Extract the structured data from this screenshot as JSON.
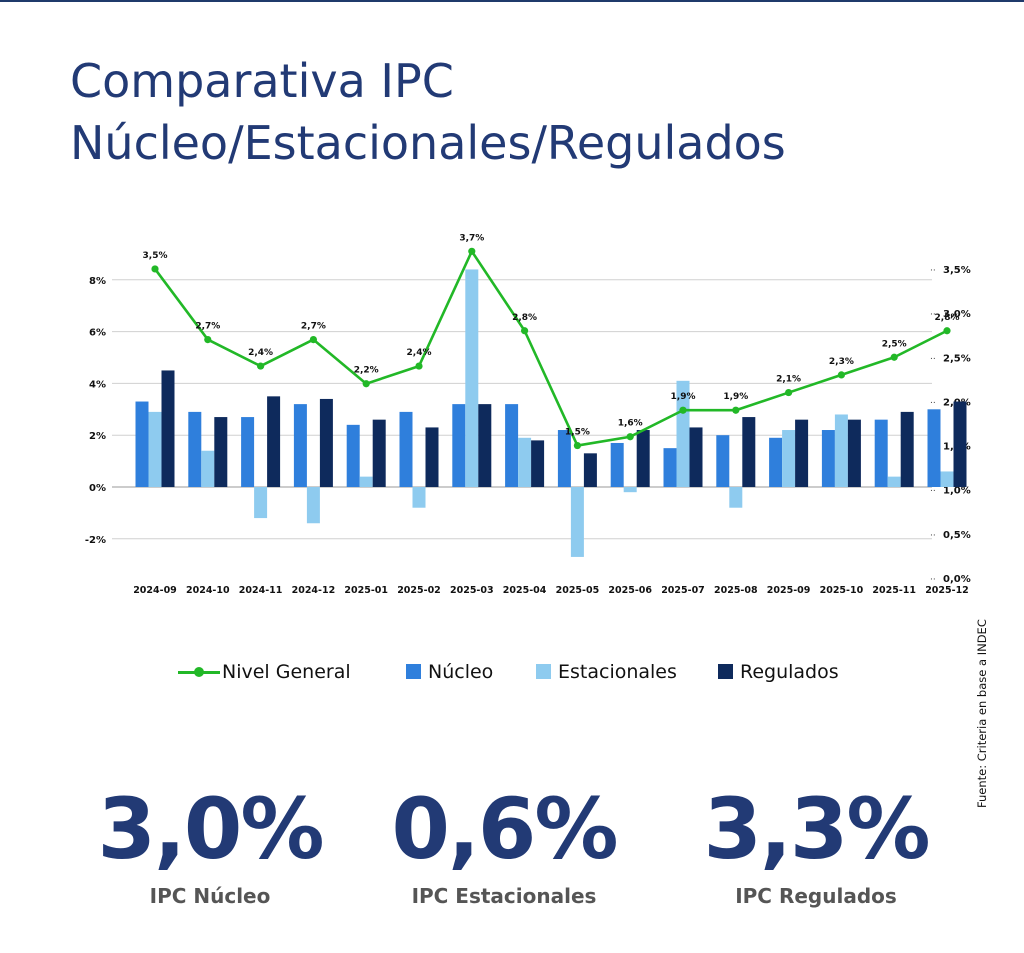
{
  "page": {
    "title_line1": "Comparativa IPC",
    "title_line2": "Núcleo/Estacionales/Regulados",
    "source": "Fuente: Criteria en base a INDEC"
  },
  "colors": {
    "title": "#223a75",
    "nivel_general": "#22b827",
    "nucleo": "#2f7fdc",
    "estacionales": "#8ecbef",
    "regulados": "#0e2a5c"
  },
  "legend": [
    {
      "key": "nivel_general",
      "label": "Nivel General",
      "icon": "line-marker-icon"
    },
    {
      "key": "nucleo",
      "label": "Núcleo",
      "icon": "square-icon"
    },
    {
      "key": "estacionales",
      "label": "Estacionales",
      "icon": "square-icon"
    },
    {
      "key": "regulados",
      "label": "Regulados",
      "icon": "square-icon"
    }
  ],
  "stats": [
    {
      "value": "3,0%",
      "label": "IPC Núcleo"
    },
    {
      "value": "0,6%",
      "label": "IPC Estacionales"
    },
    {
      "value": "3,3%",
      "label": "IPC Regulados"
    }
  ],
  "chart_data": {
    "type": "bar",
    "categories": [
      "2024-09",
      "2024-10",
      "2024-11",
      "2024-12",
      "2025-01",
      "2025-02",
      "2025-03",
      "2025-04",
      "2025-05",
      "2025-06",
      "2025-07",
      "2025-08",
      "2025-09",
      "2025-10",
      "2025-11",
      "2025-12"
    ],
    "series": [
      {
        "name": "Núcleo",
        "type": "bar",
        "axis": "left",
        "values": [
          3.3,
          2.9,
          2.7,
          3.2,
          2.4,
          2.9,
          3.2,
          3.2,
          2.2,
          1.7,
          1.5,
          2.0,
          1.9,
          2.2,
          2.6,
          3.0
        ]
      },
      {
        "name": "Estacionales",
        "type": "bar",
        "axis": "left",
        "values": [
          2.9,
          1.4,
          -1.2,
          -1.4,
          0.4,
          -0.8,
          8.4,
          1.9,
          -2.7,
          -0.2,
          4.1,
          -0.8,
          2.2,
          2.8,
          0.4,
          0.6
        ]
      },
      {
        "name": "Regulados",
        "type": "bar",
        "axis": "left",
        "values": [
          4.5,
          2.7,
          3.5,
          3.4,
          2.6,
          2.3,
          3.2,
          1.8,
          1.3,
          2.2,
          2.3,
          2.7,
          2.6,
          2.6,
          2.9,
          3.3
        ]
      },
      {
        "name": "Nivel General",
        "type": "line",
        "axis": "right",
        "values": [
          3.5,
          2.7,
          2.4,
          2.7,
          2.2,
          2.4,
          3.7,
          2.8,
          1.5,
          1.6,
          1.9,
          1.9,
          2.1,
          2.3,
          2.5,
          2.8
        ],
        "labels": [
          "3,5%",
          "2,7%",
          "2,4%",
          "2,7%",
          "2,2%",
          "2,4%",
          "3,7%",
          "2,8%",
          "1,5%",
          "1,6%",
          "1,9%",
          "1,9%",
          "2,1%",
          "2,3%",
          "2,5%",
          "2,8%"
        ]
      }
    ],
    "left_axis": {
      "ylim": [
        -3.5,
        8.5
      ],
      "ticks": [
        -2,
        0,
        2,
        4,
        6,
        8
      ],
      "tick_labels": [
        "-2%",
        "0%",
        "2%",
        "4%",
        "6%",
        "8%"
      ],
      "grid": true
    },
    "right_axis": {
      "ylim": [
        0.0,
        3.7
      ],
      "ticks": [
        0.0,
        0.5,
        1.0,
        1.5,
        2.0,
        2.5,
        3.0,
        3.5
      ],
      "tick_labels": [
        "0,0%",
        "0,5%",
        "1,0%",
        "1,5%",
        "2,0%",
        "2,5%",
        "3,0%",
        "3,5%"
      ]
    },
    "legend_position": "bottom"
  }
}
